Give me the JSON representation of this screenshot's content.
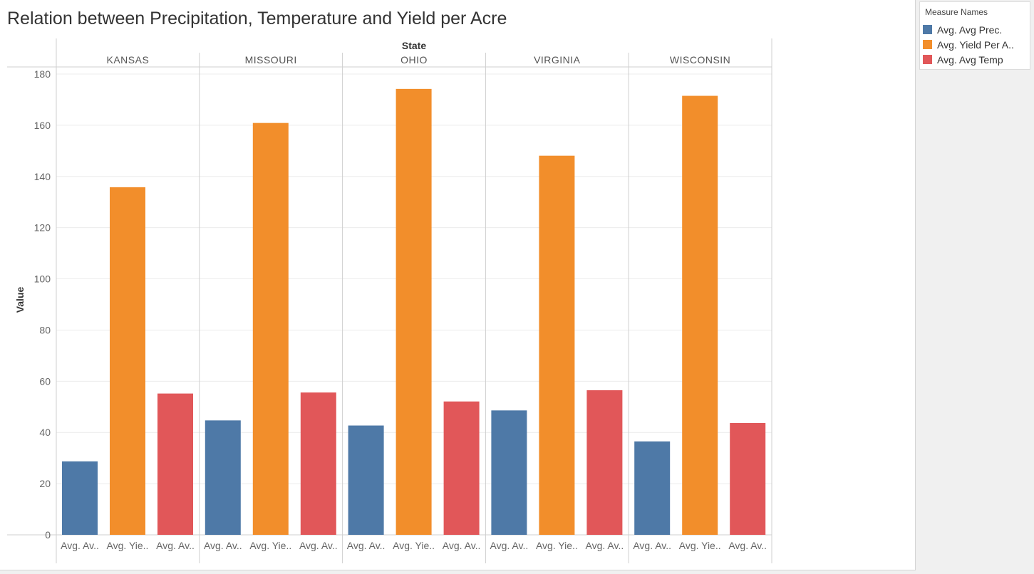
{
  "title": "Relation between Precipitation, Temperature and Yield per Acre",
  "legend": {
    "title": "Measure Names",
    "items": [
      {
        "label": "Avg. Avg Prec.",
        "color": "#4e79a7"
      },
      {
        "label": "Avg. Yield Per A..",
        "color": "#f28e2b"
      },
      {
        "label": "Avg. Avg Temp",
        "color": "#e15759"
      }
    ]
  },
  "chart_data": {
    "type": "bar",
    "column_header": "State",
    "ylabel": "Value",
    "ylim": [
      0,
      180
    ],
    "yticks": [
      0,
      20,
      40,
      60,
      80,
      100,
      120,
      140,
      160,
      180
    ],
    "grid": true,
    "states": [
      "KANSAS",
      "MISSOURI",
      "OHIO",
      "VIRGINIA",
      "WISCONSIN"
    ],
    "bar_labels": [
      "Avg. Av..",
      "Avg. Yie..",
      "Avg. Av.."
    ],
    "series": [
      {
        "name": "Avg. Avg Prec.",
        "color": "#4e79a7",
        "values": [
          28.7,
          44.7,
          42.7,
          48.6,
          36.5
        ]
      },
      {
        "name": "Avg. Yield Per A..",
        "color": "#f28e2b",
        "values": [
          135.8,
          160.9,
          174.2,
          148.1,
          171.5
        ]
      },
      {
        "name": "Avg. Avg Temp",
        "color": "#e15759",
        "values": [
          55.2,
          55.6,
          52.1,
          56.5,
          43.7
        ]
      }
    ]
  }
}
